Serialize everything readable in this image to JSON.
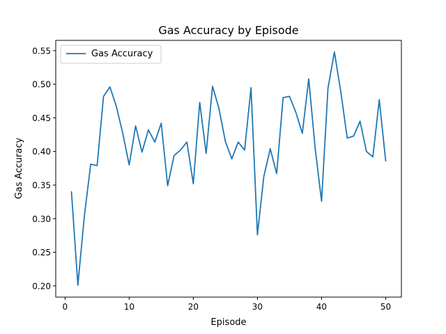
{
  "chart_data": {
    "type": "line",
    "title": "Gas Accuracy by Episode",
    "xlabel": "Episode",
    "ylabel": "Gas Accuracy",
    "xlim": [
      -1.45,
      52.45
    ],
    "ylim": [
      0.1833,
      0.5653
    ],
    "xticks": [
      0,
      10,
      20,
      30,
      40,
      50
    ],
    "yticks": [
      0.2,
      0.25,
      0.3,
      0.35,
      0.4,
      0.45,
      0.5,
      0.55
    ],
    "xtick_labels": [
      "0",
      "10",
      "20",
      "30",
      "40",
      "50"
    ],
    "ytick_labels": [
      "0.20",
      "0.25",
      "0.30",
      "0.35",
      "0.40",
      "0.45",
      "0.50",
      "0.55"
    ],
    "grid": false,
    "legend_position": "upper-left",
    "series": [
      {
        "name": "Gas Accuracy",
        "color": "#1f77b4",
        "x": [
          1,
          2,
          3,
          4,
          5,
          6,
          7,
          8,
          9,
          10,
          11,
          12,
          13,
          14,
          15,
          16,
          17,
          18,
          19,
          20,
          21,
          22,
          23,
          24,
          25,
          26,
          27,
          28,
          29,
          30,
          31,
          32,
          33,
          34,
          35,
          36,
          37,
          38,
          39,
          40,
          41,
          42,
          43,
          44,
          45,
          46,
          47,
          48,
          49,
          50
        ],
        "y": [
          0.34,
          0.201,
          0.303,
          0.381,
          0.379,
          0.482,
          0.496,
          0.467,
          0.427,
          0.38,
          0.438,
          0.399,
          0.432,
          0.414,
          0.442,
          0.349,
          0.394,
          0.402,
          0.414,
          0.352,
          0.473,
          0.397,
          0.497,
          0.464,
          0.415,
          0.389,
          0.414,
          0.402,
          0.495,
          0.276,
          0.363,
          0.404,
          0.367,
          0.48,
          0.482,
          0.458,
          0.427,
          0.508,
          0.405,
          0.326,
          0.494,
          0.548,
          0.489,
          0.42,
          0.423,
          0.445,
          0.4,
          0.392,
          0.477,
          0.386
        ]
      }
    ]
  }
}
